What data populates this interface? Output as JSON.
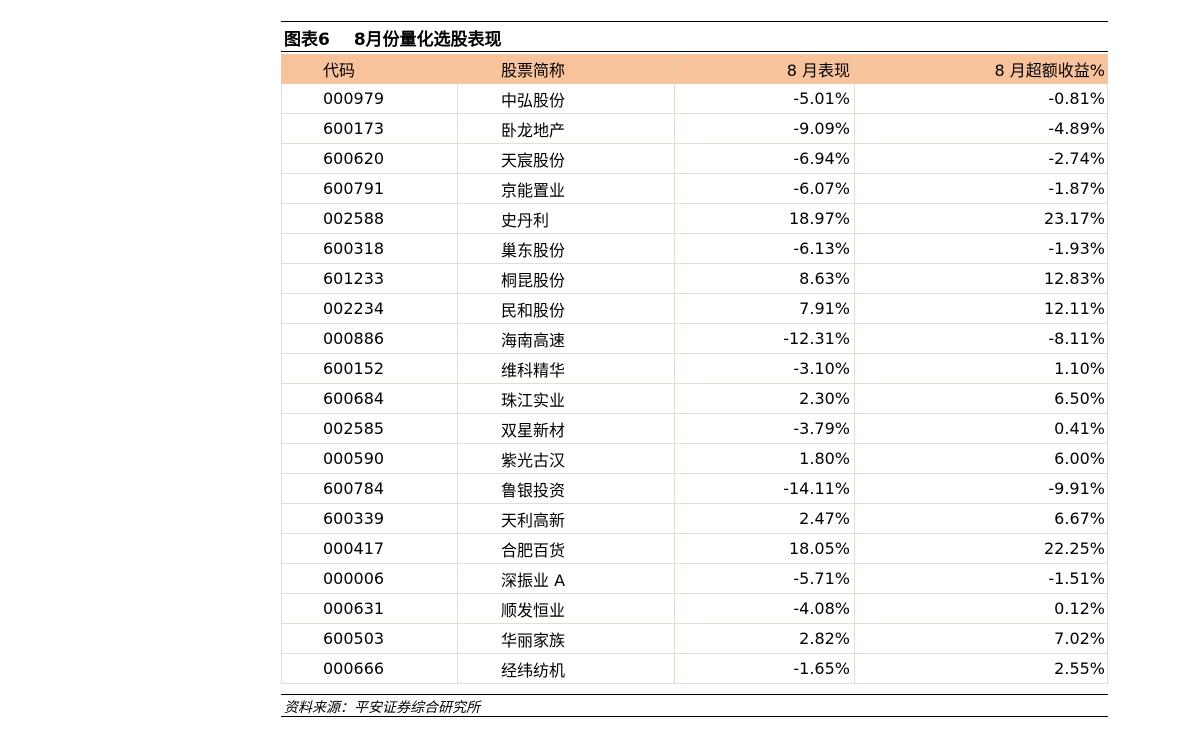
{
  "title": {
    "label": "图表6",
    "text": "8月份量化选股表现"
  },
  "table": {
    "headers": [
      "代码",
      "股票简称",
      "8 月表现",
      "8 月超额收益%"
    ],
    "rows": [
      [
        "000979",
        "中弘股份",
        "-5.01%",
        "-0.81%"
      ],
      [
        "600173",
        "卧龙地产",
        "-9.09%",
        "-4.89%"
      ],
      [
        "600620",
        "天宸股份",
        "-6.94%",
        "-2.74%"
      ],
      [
        "600791",
        "京能置业",
        "-6.07%",
        "-1.87%"
      ],
      [
        "002588",
        "史丹利",
        "18.97%",
        "23.17%"
      ],
      [
        "600318",
        "巢东股份",
        "-6.13%",
        "-1.93%"
      ],
      [
        "601233",
        "桐昆股份",
        "8.63%",
        "12.83%"
      ],
      [
        "002234",
        "民和股份",
        "7.91%",
        "12.11%"
      ],
      [
        "000886",
        "海南高速",
        "-12.31%",
        "-8.11%"
      ],
      [
        "600152",
        "维科精华",
        "-3.10%",
        "1.10%"
      ],
      [
        "600684",
        "珠江实业",
        "2.30%",
        "6.50%"
      ],
      [
        "002585",
        "双星新材",
        "-3.79%",
        "0.41%"
      ],
      [
        "000590",
        "紫光古汉",
        "1.80%",
        "6.00%"
      ],
      [
        "600784",
        "鲁银投资",
        "-14.11%",
        "-9.91%"
      ],
      [
        "600339",
        "天利高新",
        "2.47%",
        "6.67%"
      ],
      [
        "000417",
        "合肥百货",
        "18.05%",
        "22.25%"
      ],
      [
        "000006",
        "深振业 A",
        "-5.71%",
        "-1.51%"
      ],
      [
        "000631",
        "顺发恒业",
        "-4.08%",
        "0.12%"
      ],
      [
        "600503",
        "华丽家族",
        "2.82%",
        "7.02%"
      ],
      [
        "000666",
        "经纬纺机",
        "-1.65%",
        "2.55%"
      ]
    ]
  },
  "source": "资料来源：平安证券综合研究所"
}
